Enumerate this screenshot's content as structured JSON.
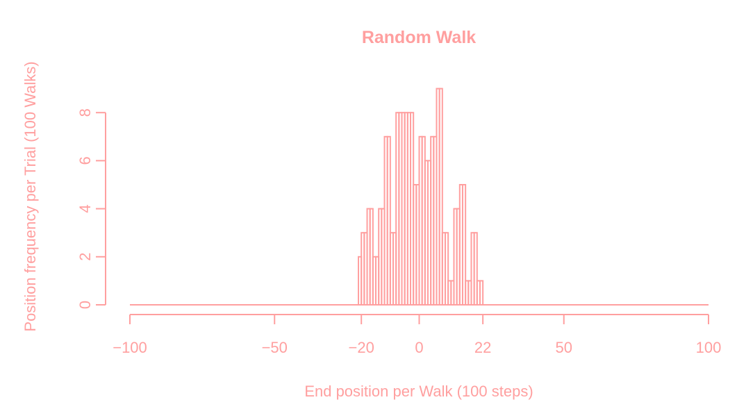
{
  "chart_data": {
    "type": "bar",
    "title": "Random Walk",
    "xlabel": "End position per Walk (100 steps)",
    "ylabel": "Position frequency per Trial (100 Walks)",
    "xlim": [
      -100,
      100
    ],
    "ylim": [
      0,
      9
    ],
    "x_ticks": [
      -100,
      -50,
      -20,
      0,
      22,
      50,
      100
    ],
    "y_ticks": [
      0,
      2,
      4,
      6,
      8
    ],
    "color": "#ff9f9f",
    "grid": false,
    "bin_width": 1,
    "x": [
      -21,
      -20,
      -19,
      -18,
      -17,
      -16,
      -15,
      -14,
      -13,
      -12,
      -11,
      -10,
      -9,
      -8,
      -7,
      -6,
      -5,
      -4,
      -3,
      -2,
      -1,
      0,
      1,
      2,
      3,
      4,
      5,
      6,
      7,
      8,
      9,
      10,
      11,
      12,
      13,
      14,
      15,
      16,
      17,
      18,
      19,
      20,
      21,
      22
    ],
    "values": [
      2,
      3,
      3,
      4,
      4,
      2,
      2,
      4,
      4,
      7,
      7,
      3,
      3,
      8,
      8,
      8,
      8,
      8,
      8,
      5,
      5,
      7,
      7,
      6,
      6,
      7,
      7,
      9,
      9,
      3,
      3,
      1,
      1,
      4,
      4,
      5,
      5,
      1,
      1,
      3,
      3,
      1,
      1,
      0
    ]
  }
}
